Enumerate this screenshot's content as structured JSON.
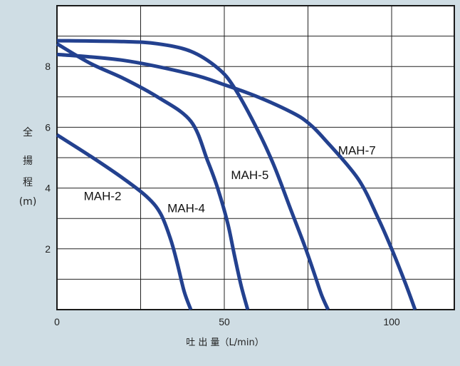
{
  "chart_data": {
    "type": "line",
    "title": "",
    "xlabel": "吐 出 量（L/min）",
    "ylabel_chars": [
      "全",
      "揚",
      "程",
      "(m)"
    ],
    "xlim": [
      0,
      120
    ],
    "ylim": [
      0,
      10
    ],
    "x_ticks": [
      0,
      50,
      100
    ],
    "y_ticks": [
      2,
      4,
      6,
      8
    ],
    "grid": true,
    "colors": {
      "background": "#cfdde4",
      "plot_background": "#ffffff",
      "grid": "#222222",
      "line": "#23418f",
      "border": "#1a1a1a"
    },
    "series": [
      {
        "name": "MAH-2",
        "x": [
          0,
          10,
          20,
          27,
          31,
          34,
          36,
          38,
          40
        ],
        "y": [
          5.75,
          5.05,
          4.3,
          3.7,
          3.15,
          2.3,
          1.5,
          0.6,
          0
        ]
      },
      {
        "name": "MAH-4",
        "x": [
          0,
          10,
          20,
          30,
          40,
          45,
          48,
          51,
          53,
          55,
          57
        ],
        "y": [
          8.75,
          8.1,
          7.6,
          7.0,
          6.2,
          4.9,
          4.0,
          2.85,
          1.8,
          0.8,
          0
        ]
      },
      {
        "name": "MAH-5",
        "x": [
          0,
          20,
          30,
          40,
          48,
          53,
          60,
          65,
          70,
          74,
          77,
          79,
          81
        ],
        "y": [
          8.85,
          8.82,
          8.75,
          8.5,
          7.95,
          7.3,
          5.9,
          4.7,
          3.25,
          2.1,
          1.15,
          0.5,
          0
        ]
      },
      {
        "name": "MAH-7",
        "x": [
          0,
          20,
          40,
          50,
          60,
          70,
          75,
          80,
          90,
          96,
          100,
          104,
          107
        ],
        "y": [
          8.4,
          8.2,
          7.75,
          7.4,
          7.0,
          6.5,
          6.15,
          5.6,
          4.3,
          3.0,
          2.0,
          0.9,
          0
        ]
      }
    ]
  }
}
